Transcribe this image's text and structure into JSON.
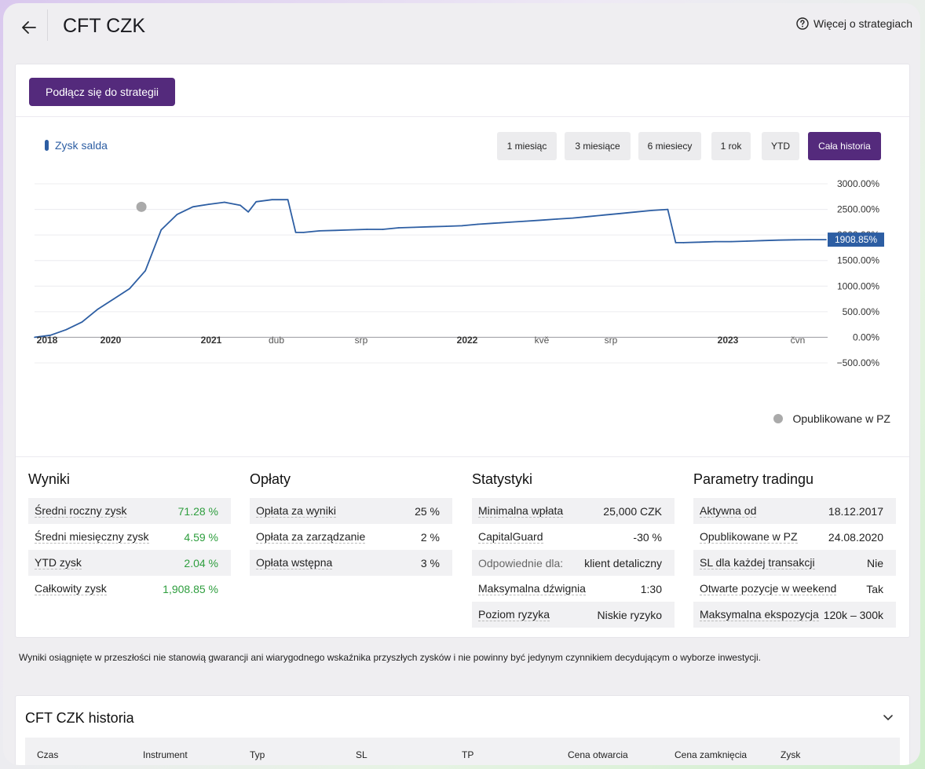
{
  "header": {
    "title": "CFT CZK",
    "more_link": "Więcej o strategiach"
  },
  "actions": {
    "connect_label": "Podłącz się do strategii"
  },
  "chart_legend": {
    "series_label": "Zysk salda",
    "published_label": "Opublikowane w PZ"
  },
  "periods": [
    "1 miesiąc",
    "3 miesiące",
    "6 miesiecy",
    "1 rok",
    "YTD",
    "Cała historia"
  ],
  "active_period": "Cała historia",
  "colors": {
    "accent": "#542a7c",
    "line": "#2d5ea3",
    "positive": "#2e9e3e",
    "marker": "#aaaaaa"
  },
  "chart_data": {
    "type": "line",
    "series": [
      {
        "name": "Zysk salda",
        "x": [
          0,
          0.02,
          0.04,
          0.06,
          0.08,
          0.1,
          0.12,
          0.14,
          0.16,
          0.18,
          0.2,
          0.22,
          0.24,
          0.26,
          0.27,
          0.28,
          0.3,
          0.32,
          0.33,
          0.34,
          0.36,
          0.38,
          0.4,
          0.42,
          0.44,
          0.46,
          0.48,
          0.5,
          0.52,
          0.54,
          0.56,
          0.58,
          0.6,
          0.62,
          0.64,
          0.66,
          0.68,
          0.7,
          0.72,
          0.74,
          0.76,
          0.78,
          0.8,
          0.81,
          0.82,
          0.84,
          0.86,
          0.88,
          0.9,
          0.92,
          0.94,
          0.96,
          0.98,
          1.0
        ],
        "y": [
          0,
          40,
          150,
          300,
          550,
          750,
          950,
          1300,
          2100,
          2400,
          2550,
          2600,
          2640,
          2580,
          2450,
          2650,
          2690,
          2690,
          2050,
          2050,
          2080,
          2090,
          2100,
          2110,
          2110,
          2140,
          2150,
          2160,
          2170,
          2180,
          2210,
          2230,
          2250,
          2270,
          2290,
          2310,
          2330,
          2360,
          2390,
          2420,
          2450,
          2480,
          2500,
          1850,
          1850,
          1860,
          1870,
          1870,
          1880,
          1890,
          1900,
          1905,
          1908,
          1908.85
        ]
      }
    ],
    "xticks": [
      {
        "label": "2018",
        "bold": true
      },
      {
        "label": "2020",
        "bold": true
      },
      {
        "label": "2021",
        "bold": true
      },
      {
        "label": "dub",
        "bold": false
      },
      {
        "label": "srp",
        "bold": false
      },
      {
        "label": "2022",
        "bold": true
      },
      {
        "label": "kvě",
        "bold": false
      },
      {
        "label": "srp",
        "bold": false
      },
      {
        "label": "2023",
        "bold": true
      },
      {
        "label": "čvn",
        "bold": false
      }
    ],
    "ytick_values": [
      3000,
      2500,
      2000,
      1500,
      1000,
      500,
      0,
      -500
    ],
    "ytick_labels": [
      "3000.00%",
      "2500.00%",
      "2000.00%",
      "1500.00%",
      "1000.00%",
      "500.00%",
      "0.00%",
      "−500.00%"
    ],
    "ylim": [
      -500,
      3000
    ],
    "last_value_label": "1908.85%",
    "marker": {
      "label": "Opublikowane w PZ",
      "x": 0.135,
      "y": 2550
    },
    "grid": true
  },
  "panels": [
    {
      "title": "Wyniki",
      "rows": [
        {
          "label": "Średni roczny zysk",
          "value": "71.28 %",
          "green": true
        },
        {
          "label": "Średni miesięczny zysk",
          "value": "4.59 %",
          "green": true
        },
        {
          "label": "YTD zysk",
          "value": "2.04 %",
          "green": true
        },
        {
          "label": "Całkowity zysk",
          "value": "1,908.85 %",
          "green": true
        }
      ]
    },
    {
      "title": "Opłaty",
      "rows": [
        {
          "label": "Opłata za wyniki",
          "value": "25 %",
          "green": false
        },
        {
          "label": "Opłata za zarządzanie",
          "value": "2 %",
          "green": false
        },
        {
          "label": "Opłata wstępna",
          "value": "3 %",
          "green": false
        }
      ]
    },
    {
      "title": "Statystyki",
      "rows": [
        {
          "label": "Minimalna wpłata",
          "value": "25,000 CZK",
          "green": false
        },
        {
          "label": "CapitalGuard",
          "value": "-30 %",
          "green": false
        },
        {
          "label": "Odpowiednie dla:",
          "value": "klient detaliczny",
          "green": false,
          "muted": true
        },
        {
          "label": "Maksymalna dźwignia",
          "value": "1:30",
          "green": false
        },
        {
          "label": "Poziom ryzyka",
          "value": "Niskie ryzyko",
          "green": false
        }
      ]
    },
    {
      "title": "Parametry tradingu",
      "rows": [
        {
          "label": "Aktywna od",
          "value": "18.12.2017",
          "green": false
        },
        {
          "label": "Opublikowane w PZ",
          "value": "24.08.2020",
          "green": false
        },
        {
          "label": "SL dla każdej transakcji",
          "value": "Nie",
          "green": false
        },
        {
          "label": "Otwarte pozycje w weekend",
          "value": "Tak",
          "green": false
        },
        {
          "label": "Maksymalna ekspozycja",
          "value": "120k – 300k",
          "green": false
        }
      ]
    }
  ],
  "disclaimer": "Wyniki osiągnięte w przeszłości nie stanowią gwarancji ani wiarygodnego wskaźnika przyszłych zysków i nie powinny być jedynym czynnikiem decydującym o wyborze inwestycji.",
  "history": {
    "title": "CFT CZK historia",
    "columns": [
      "Czas",
      "Instrument",
      "Typ",
      "SL",
      "TP",
      "Cena otwarcia",
      "Cena zamknięcia",
      "Zysk"
    ]
  }
}
